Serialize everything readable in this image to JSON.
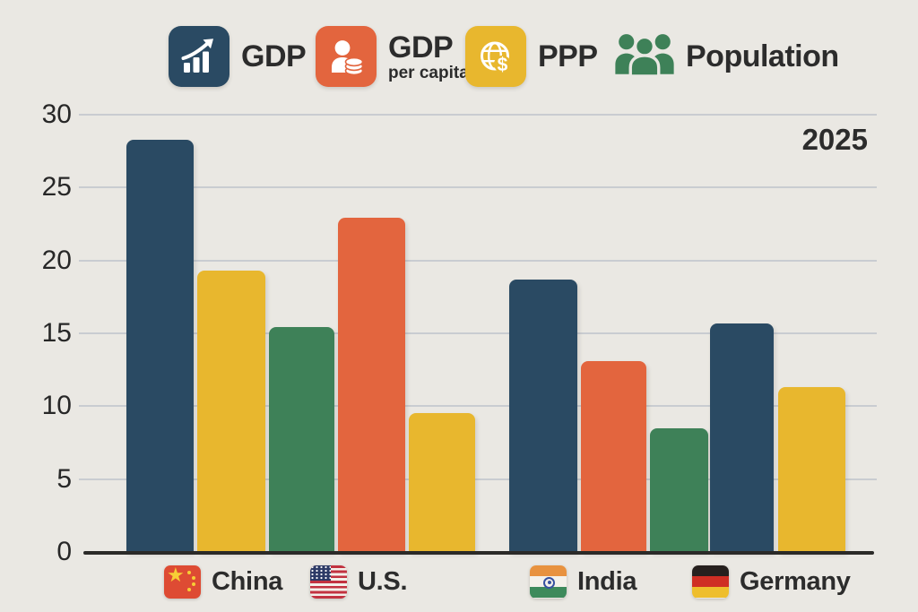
{
  "canvas": {
    "background": "#eae8e3"
  },
  "palette": {
    "navy": "#2a4a63",
    "orange": "#e3653e",
    "yellow": "#e8b72e",
    "green": "#3e8158",
    "text": "#2c2c2c",
    "gridline": "#c9ccd1",
    "axis": "#2b2a28"
  },
  "legend": {
    "items": [
      {
        "label": "GDP",
        "sublabel": "",
        "color": "#2a4a63",
        "icon": "bar-chart-growth-icon"
      },
      {
        "label": "GDP",
        "sublabel": "per capita",
        "color": "#e3653e",
        "icon": "person-coins-icon"
      },
      {
        "label": "PPP",
        "sublabel": "",
        "color": "#e8b72e",
        "icon": "globe-dollar-icon"
      },
      {
        "label": "Population",
        "sublabel": "",
        "color": "#3e8158",
        "icon": "people-group-icon"
      }
    ]
  },
  "chart_data": {
    "type": "bar",
    "title": "",
    "year_label": "2025",
    "ylim": [
      0,
      30
    ],
    "yticks": [
      0,
      5,
      10,
      15,
      20,
      25,
      30
    ],
    "grid": true,
    "legend_position": "top",
    "series_legend": [
      {
        "label": "GDP",
        "color": "#2a4a63"
      },
      {
        "label": "GDP per capita",
        "color": "#e3653e"
      },
      {
        "label": "PPP",
        "color": "#e8b72e"
      },
      {
        "label": "Population",
        "color": "#3e8158"
      }
    ],
    "groups": [
      {
        "countries": [
          "China",
          "U.S."
        ],
        "bars": [
          {
            "metric": "GDP",
            "value": 28.3
          },
          {
            "metric": "PPP",
            "value": 19.3
          },
          {
            "metric": "Population",
            "value": 15.4
          },
          {
            "metric": "GDP per capita",
            "value": 22.9
          },
          {
            "metric": "PPP",
            "value": 9.5
          }
        ]
      },
      {
        "countries": [
          "India",
          "Germany"
        ],
        "bars": [
          {
            "metric": "GDP",
            "value": 18.7
          },
          {
            "metric": "GDP per capita",
            "value": 13.1
          },
          {
            "metric": "Population",
            "value": 8.5
          },
          {
            "metric": "GDP",
            "value": 15.7
          },
          {
            "metric": "PPP",
            "value": 11.3
          }
        ]
      }
    ],
    "x_axis_labels": [
      {
        "label": "China",
        "flag": "china-flag"
      },
      {
        "label": "U.S.",
        "flag": "us-flag"
      },
      {
        "label": "India",
        "flag": "india-flag"
      },
      {
        "label": "Germany",
        "flag": "germany-flag"
      }
    ]
  }
}
